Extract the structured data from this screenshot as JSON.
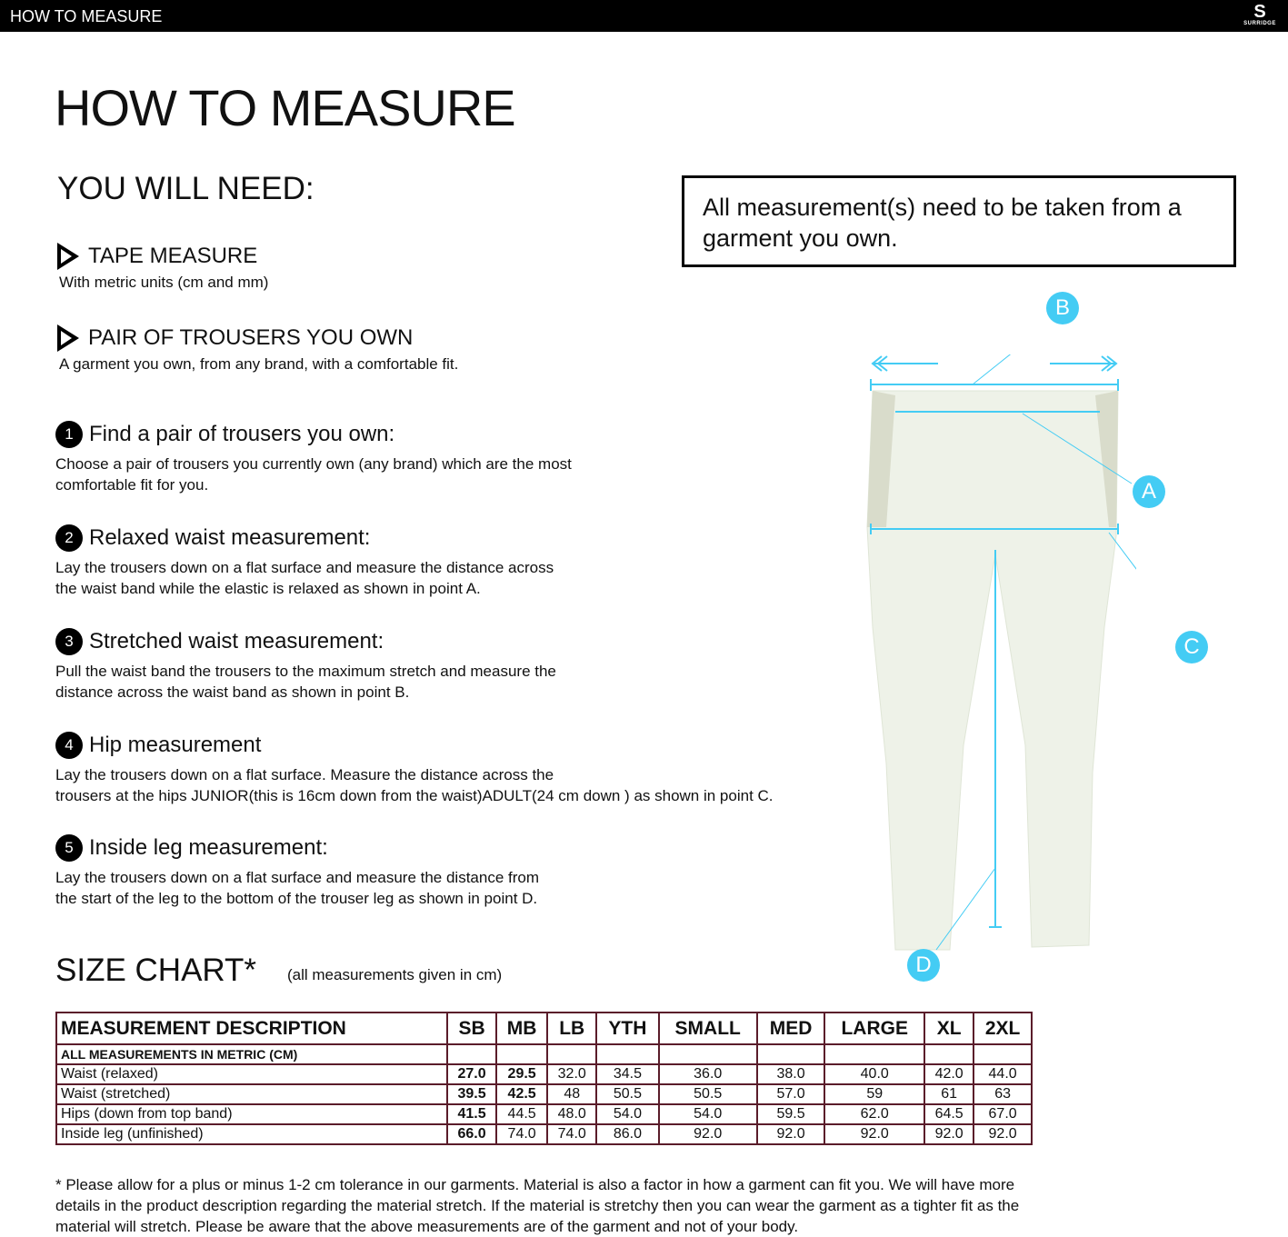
{
  "header": {
    "title": "HOW TO MEASURE",
    "logo": "SURRIDGE"
  },
  "page_title": "HOW TO MEASURE",
  "need": {
    "heading": "YOU WILL NEED:",
    "items": [
      {
        "title": "TAPE MEASURE",
        "desc": "With metric units (cm and mm)"
      },
      {
        "title": "PAIR OF TROUSERS YOU OWN",
        "desc": "A garment you own, from any brand, with a comfortable fit."
      }
    ]
  },
  "note": "All measurement(s) need to be taken from a garment you own.",
  "steps": [
    {
      "n": "1",
      "title": "Find a pair of trousers you own:",
      "l1": "Choose a pair of trousers you currently own (any brand) which are the most",
      "l2": "comfortable fit for you."
    },
    {
      "n": "2",
      "title": "Relaxed waist measurement:",
      "l1": "Lay the trousers down on a flat surface and measure the distance across",
      "l2": "the waist band while the elastic is relaxed as shown in point A."
    },
    {
      "n": "3",
      "title": "Stretched waist measurement:",
      "l1": "Pull the waist band the trousers to the maximum stretch and measure the",
      "l2": "distance across the waist band as shown in point B."
    },
    {
      "n": "4",
      "title": "Hip measurement",
      "l1": "Lay the trousers down on a flat surface. Measure the distance across the",
      "l2": "trousers at the hips JUNIOR(this is 16cm down from the waist)ADULT(24 cm down ) as shown in point C."
    },
    {
      "n": "5",
      "title": "Inside leg measurement:",
      "l1": "Lay the trousers down on a flat surface and measure the distance from",
      "l2": "the start of the leg to the bottom of the trouser leg as shown in point D."
    }
  ],
  "diagram": {
    "labels": [
      "A",
      "B",
      "C",
      "D"
    ],
    "accent": "#44ccf4"
  },
  "size_chart": {
    "title": "SIZE CHART*",
    "note": "(all measurements given in cm)",
    "headers": [
      "MEASUREMENT DESCRIPTION",
      "SB",
      "MB",
      "LB",
      "YTH",
      "SMALL",
      "MED",
      "LARGE",
      "XL",
      "2XL"
    ],
    "subheader": "ALL MEASUREMENTS IN METRIC (CM)",
    "rows": [
      [
        "Waist (relaxed)",
        "27.0",
        "29.5",
        "32.0",
        "34.5",
        "36.0",
        "38.0",
        "40.0",
        "42.0",
        "44.0"
      ],
      [
        "Waist (stretched)",
        "39.5",
        "42.5",
        "48",
        "50.5",
        "50.5",
        "57.0",
        "59",
        "61",
        "63"
      ],
      [
        "Hips (down from top band)",
        "41.5",
        "44.5",
        "48.0",
        "54.0",
        "54.0",
        "59.5",
        "62.0",
        "64.5",
        "67.0"
      ],
      [
        "Inside leg (unfinished)",
        "66.0",
        "74.0",
        "74.0",
        "86.0",
        "92.0",
        "92.0",
        "92.0",
        "92.0",
        "92.0"
      ]
    ]
  },
  "footnote": "* Please allow for a plus or minus 1-2 cm tolerance in our garments. Material is also a factor in how a garment can fit you. We will have more details in the product description regarding the material stretch.  If the material is stretchy then you can wear the garment as a tighter fit as the material will stretch.  Please be aware that the above measurements are of the garment and not of your body."
}
